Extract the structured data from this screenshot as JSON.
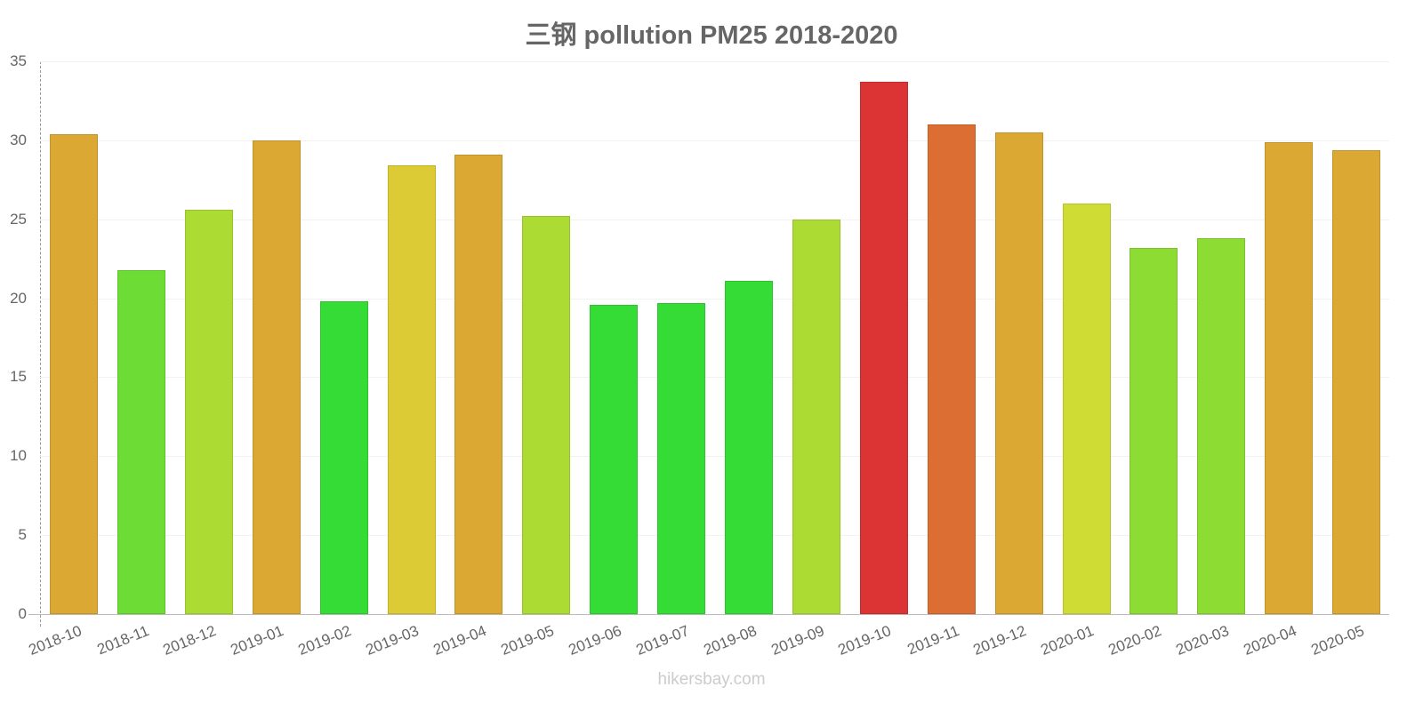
{
  "title": "三钢 pollution PM25 2018-2020",
  "footer": "hikersbay.com",
  "chart_data": {
    "type": "bar",
    "title": "三钢 pollution PM25 2018-2020",
    "xlabel": "",
    "ylabel": "",
    "ylim": [
      0,
      35
    ],
    "yticks": [
      0,
      5,
      10,
      15,
      20,
      25,
      30,
      35
    ],
    "grid": true,
    "legend": null,
    "categories": [
      "2018-10",
      "2018-11",
      "2018-12",
      "2019-01",
      "2019-02",
      "2019-03",
      "2019-04",
      "2019-05",
      "2019-06",
      "2019-07",
      "2019-08",
      "2019-09",
      "2019-10",
      "2019-11",
      "2019-12",
      "2020-01",
      "2020-02",
      "2020-03",
      "2020-04",
      "2020-05"
    ],
    "values": [
      30.4,
      21.8,
      25.6,
      30.0,
      19.8,
      28.4,
      29.1,
      25.2,
      19.6,
      19.7,
      21.1,
      25.0,
      33.7,
      31.0,
      30.5,
      26.0,
      23.2,
      23.8,
      29.9,
      29.4
    ],
    "colors": [
      "#dca834",
      "#6ddd36",
      "#acdc34",
      "#dca834",
      "#36dc36",
      "#dccb34",
      "#dca834",
      "#acdc34",
      "#36dc36",
      "#36dc36",
      "#36dc36",
      "#acdc34",
      "#dc3434",
      "#dc6e34",
      "#dca834",
      "#cedc34",
      "#8cdc34",
      "#8cdc34",
      "#dca834",
      "#dca834"
    ]
  }
}
